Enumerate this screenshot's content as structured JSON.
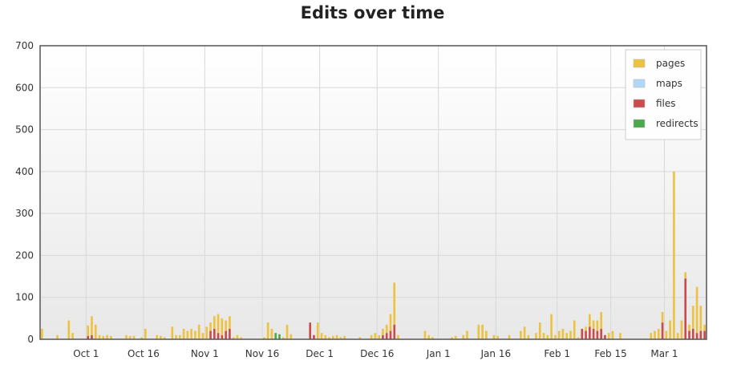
{
  "chart_data": {
    "type": "bar",
    "title": "Edits over time",
    "xlabel": "",
    "ylabel": "",
    "ylim": [
      0,
      700
    ],
    "yticks": [
      0,
      100,
      200,
      300,
      400,
      500,
      600,
      700
    ],
    "xticks": [
      "Oct 1",
      "Oct 16",
      "Nov 1",
      "Nov 16",
      "Dec 1",
      "Dec 16",
      "Jan 1",
      "Jan 16",
      "Feb 1",
      "Feb 15",
      "Mar 1"
    ],
    "grid": true,
    "legend_position": "top-right",
    "stacked": true,
    "x_start_date": "2013-09-19",
    "colors": {
      "pages": "#edc240",
      "maps": "#afd8f8",
      "files": "#cb4b4b",
      "redirects": "#4da74d"
    },
    "series": [
      {
        "name": "pages",
        "values": [
          25,
          0,
          0,
          0,
          10,
          0,
          0,
          45,
          15,
          0,
          0,
          0,
          25,
          45,
          35,
          10,
          8,
          10,
          8,
          0,
          0,
          0,
          10,
          8,
          8,
          0,
          5,
          25,
          0,
          0,
          10,
          8,
          5,
          0,
          30,
          10,
          10,
          25,
          20,
          25,
          20,
          35,
          15,
          30,
          20,
          30,
          45,
          40,
          25,
          30,
          5,
          10,
          5,
          0,
          0,
          0,
          0,
          0,
          5,
          40,
          25,
          0,
          0,
          5,
          35,
          12,
          0,
          0,
          0,
          0,
          0,
          0,
          40,
          15,
          10,
          5,
          8,
          10,
          5,
          8,
          0,
          0,
          0,
          5,
          0,
          0,
          10,
          15,
          10,
          15,
          20,
          40,
          100,
          10,
          0,
          0,
          0,
          0,
          0,
          0,
          20,
          10,
          5,
          0,
          0,
          0,
          0,
          5,
          8,
          0,
          10,
          20,
          0,
          0,
          35,
          35,
          20,
          0,
          10,
          8,
          0,
          0,
          10,
          0,
          0,
          20,
          30,
          10,
          0,
          15,
          40,
          15,
          10,
          60,
          10,
          20,
          25,
          15,
          20,
          45,
          5,
          0,
          10,
          30,
          20,
          25,
          40,
          0,
          15,
          20,
          0,
          15,
          0,
          0,
          0,
          0,
          0,
          0,
          0,
          15,
          20,
          25,
          25,
          20,
          45,
          400,
          15,
          45,
          15,
          15,
          55,
          110,
          60,
          15
        ],
        "_note": "stacked residual amounts above files"
      },
      {
        "name": "maps",
        "values": [
          0,
          0,
          0,
          0,
          0,
          0,
          0,
          0,
          0,
          0,
          0,
          0,
          0,
          0,
          0,
          0,
          0,
          0,
          0,
          0,
          0,
          0,
          0,
          0,
          0,
          0,
          0,
          0,
          0,
          0,
          0,
          0,
          0,
          0,
          0,
          0,
          0,
          0,
          0,
          0,
          0,
          0,
          0,
          0,
          0,
          0,
          0,
          0,
          0,
          0,
          0,
          0,
          0,
          0,
          0,
          0,
          0,
          0,
          0,
          0,
          0,
          0,
          0,
          0,
          0,
          0,
          0,
          0,
          0,
          0,
          0,
          0,
          0,
          0,
          0,
          0,
          0,
          0,
          0,
          0,
          0,
          0,
          0,
          0,
          0,
          0,
          0,
          0,
          0,
          0,
          0,
          0,
          0,
          0,
          0,
          0,
          0,
          0,
          0,
          0,
          0,
          0,
          0,
          0,
          0,
          0,
          0,
          0,
          0,
          0,
          0,
          0,
          0,
          0,
          0,
          0,
          0,
          0,
          0,
          0,
          0,
          0,
          0,
          0,
          0,
          0,
          0,
          0,
          0,
          0,
          0,
          0,
          0,
          0,
          0,
          0,
          0,
          0,
          0,
          0,
          0,
          0,
          0,
          0,
          0,
          0,
          0,
          0,
          0,
          0,
          0,
          0,
          0,
          0,
          0,
          0,
          0,
          0,
          0,
          0,
          0,
          0,
          0,
          0,
          0,
          0,
          0,
          0,
          0,
          0,
          0,
          0,
          0,
          0
        ]
      },
      {
        "name": "files",
        "values": [
          0,
          0,
          0,
          0,
          0,
          0,
          0,
          0,
          0,
          0,
          0,
          0,
          8,
          10,
          0,
          0,
          0,
          0,
          0,
          0,
          0,
          0,
          0,
          0,
          0,
          0,
          0,
          0,
          0,
          0,
          0,
          0,
          0,
          0,
          0,
          0,
          0,
          0,
          0,
          0,
          0,
          0,
          0,
          0,
          20,
          25,
          15,
          10,
          20,
          25,
          0,
          0,
          0,
          0,
          0,
          0,
          0,
          0,
          0,
          0,
          0,
          0,
          0,
          0,
          0,
          0,
          0,
          0,
          0,
          0,
          40,
          10,
          0,
          0,
          0,
          0,
          0,
          0,
          0,
          0,
          0,
          0,
          0,
          0,
          0,
          0,
          0,
          0,
          0,
          10,
          15,
          20,
          35,
          0,
          0,
          0,
          0,
          0,
          0,
          0,
          0,
          0,
          0,
          0,
          0,
          0,
          0,
          0,
          0,
          0,
          0,
          0,
          0,
          0,
          0,
          0,
          0,
          0,
          0,
          0,
          0,
          0,
          0,
          0,
          0,
          0,
          0,
          0,
          0,
          0,
          0,
          0,
          0,
          0,
          0,
          0,
          0,
          0,
          0,
          0,
          0,
          25,
          20,
          30,
          25,
          20,
          25,
          10,
          0,
          0,
          0,
          0,
          0,
          0,
          0,
          0,
          0,
          0,
          0,
          0,
          0,
          0,
          40,
          0,
          0,
          0,
          0,
          0,
          145,
          20,
          25,
          15,
          20,
          20,
          0
        ],
        "_note": "height of red segment"
      },
      {
        "name": "redirects",
        "values": [
          0,
          0,
          0,
          0,
          0,
          0,
          0,
          0,
          0,
          0,
          0,
          0,
          0,
          0,
          0,
          0,
          0,
          0,
          0,
          0,
          0,
          0,
          0,
          0,
          0,
          0,
          0,
          0,
          0,
          0,
          0,
          0,
          0,
          0,
          0,
          0,
          0,
          0,
          0,
          0,
          0,
          0,
          0,
          0,
          0,
          0,
          0,
          0,
          0,
          0,
          0,
          0,
          0,
          0,
          0,
          0,
          0,
          0,
          0,
          0,
          0,
          15,
          12,
          0,
          0,
          0,
          0,
          0,
          0,
          0,
          0,
          0,
          0,
          0,
          0,
          0,
          0,
          0,
          0,
          0,
          0,
          0,
          0,
          0,
          0,
          0,
          0,
          0,
          0,
          0,
          0,
          0,
          0,
          0,
          0,
          0,
          0,
          0,
          0,
          0,
          0,
          0,
          0,
          0,
          0,
          0,
          0,
          0,
          0,
          0,
          0,
          0,
          0,
          0,
          0,
          0,
          0,
          0,
          0,
          0,
          0,
          0,
          0,
          0,
          0,
          0,
          0,
          0,
          0,
          0,
          0,
          0,
          0,
          0,
          0,
          0,
          0,
          0,
          0,
          0,
          0,
          0,
          0,
          0,
          0,
          0,
          0,
          0,
          0,
          0,
          0,
          0,
          0,
          0,
          0,
          0,
          0,
          0,
          0,
          0,
          0,
          0,
          0,
          0,
          0,
          0,
          0,
          0,
          0,
          0,
          0,
          0,
          0,
          0
        ]
      }
    ]
  }
}
